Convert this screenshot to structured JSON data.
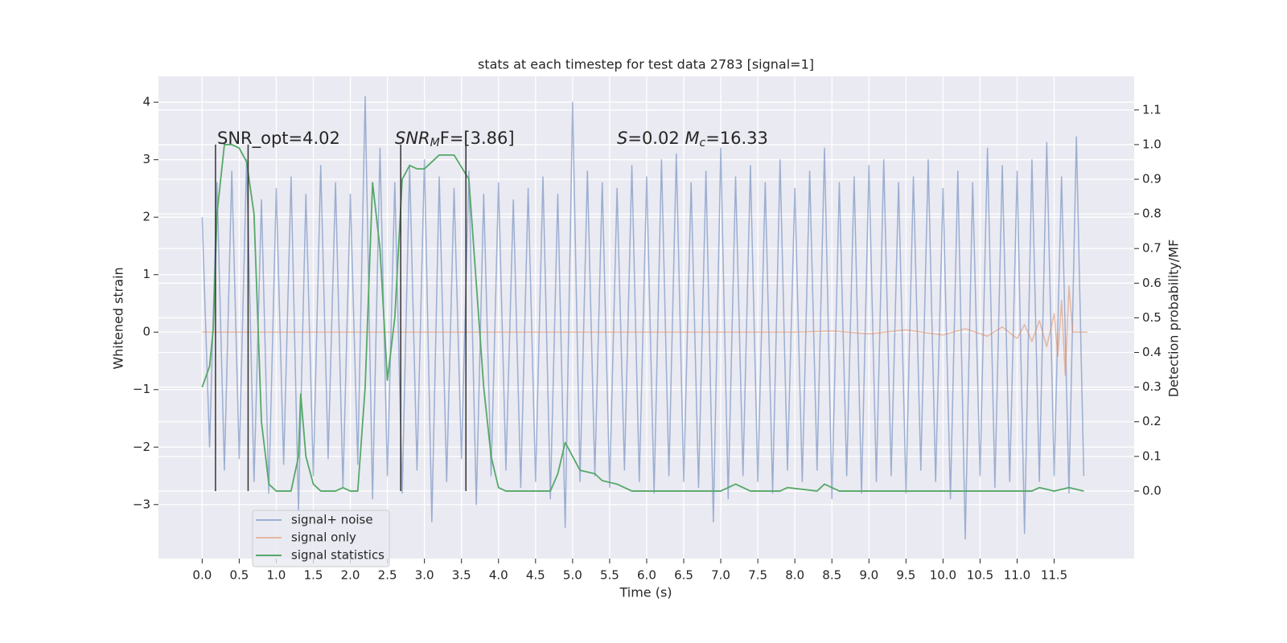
{
  "chart_data": {
    "type": "line",
    "title": "stats at each timestep for test data 2783 [signal=1]",
    "x_label": "Time (s)",
    "y_label": "Whitened strain",
    "y2_label": "Detection probability/MF",
    "xlim": [
      -0.59,
      12.58
    ],
    "ylim": [
      -3.94,
      4.45
    ],
    "y2lim": [
      -0.195,
      1.197
    ],
    "grid": true,
    "background": "#eaeaf2",
    "legend": "lower left",
    "xticks": [
      {
        "value": 0,
        "label": "0.0"
      },
      0.5,
      {
        "value": 1,
        "label": "1.0"
      },
      1.5,
      {
        "value": 2,
        "label": "2.0"
      },
      2.5,
      {
        "value": 3,
        "label": "3.0"
      },
      3.5,
      {
        "value": 4,
        "label": "4.0"
      },
      4.5,
      {
        "value": 5,
        "label": "5.0"
      },
      5.5,
      {
        "value": 6,
        "label": "6.0"
      },
      6.5,
      {
        "value": 7,
        "label": "7.0"
      },
      7.5,
      {
        "value": 8,
        "label": "8.0"
      },
      8.5,
      {
        "value": 9,
        "label": "9.0"
      },
      9.5,
      {
        "value": 10,
        "label": "10.0"
      },
      10.5,
      {
        "value": 11,
        "label": "11.0"
      },
      11.5
    ],
    "yticks": [
      {
        "value": -3,
        "label": "−3"
      },
      {
        "value": -2,
        "label": "−2"
      },
      {
        "value": -1,
        "label": "−1"
      },
      0,
      1,
      2,
      3,
      4
    ],
    "y2ticks": [
      {
        "value": 0,
        "label": "0.0"
      },
      0.1,
      0.2,
      0.3,
      0.4,
      0.5,
      0.6,
      0.7,
      0.8,
      0.9,
      {
        "value": 1,
        "label": "1.0"
      },
      1.1
    ],
    "series": [
      {
        "name": "signal+ noise",
        "color": "#4c72b0",
        "opacity": 0.5,
        "x": [
          0.0,
          0.1,
          0.2,
          0.3,
          0.4,
          0.5,
          0.6,
          0.7,
          0.8,
          0.9,
          1.0,
          1.1,
          1.2,
          1.3,
          1.4,
          1.5,
          1.6,
          1.7,
          1.8,
          1.9,
          2.0,
          2.1,
          2.2,
          2.3,
          2.4,
          2.5,
          2.6,
          2.7,
          2.8,
          2.9,
          3.0,
          3.1,
          3.2,
          3.3,
          3.4,
          3.5,
          3.6,
          3.7,
          3.8,
          3.9,
          4.0,
          4.1,
          4.2,
          4.3,
          4.4,
          4.5,
          4.6,
          4.7,
          4.8,
          4.9,
          5.0,
          5.1,
          5.2,
          5.3,
          5.4,
          5.5,
          5.6,
          5.7,
          5.8,
          5.9,
          6.0,
          6.1,
          6.2,
          6.3,
          6.4,
          6.5,
          6.6,
          6.7,
          6.8,
          6.9,
          7.0,
          7.1,
          7.2,
          7.3,
          7.4,
          7.5,
          7.6,
          7.7,
          7.8,
          7.9,
          8.0,
          8.1,
          8.2,
          8.3,
          8.4,
          8.5,
          8.6,
          8.7,
          8.8,
          8.9,
          9.0,
          9.1,
          9.2,
          9.3,
          9.4,
          9.5,
          9.6,
          9.7,
          9.8,
          9.9,
          10.0,
          10.1,
          10.2,
          10.3,
          10.4,
          10.5,
          10.6,
          10.7,
          10.8,
          10.9,
          11.0,
          11.1,
          11.2,
          11.3,
          11.4,
          11.5,
          11.6,
          11.7,
          11.8,
          11.9
        ],
        "values": [
          2.0,
          -2.0,
          2.6,
          -2.4,
          2.8,
          -2.2,
          3.0,
          -2.6,
          2.3,
          -2.8,
          2.5,
          -2.3,
          2.7,
          -3.1,
          2.4,
          -2.5,
          2.9,
          -2.2,
          2.6,
          -2.7,
          2.4,
          -2.3,
          4.1,
          -2.9,
          3.2,
          -2.5,
          2.6,
          -2.8,
          2.9,
          -2.4,
          3.0,
          -3.3,
          2.7,
          -2.6,
          2.5,
          -2.2,
          2.8,
          -3.0,
          2.4,
          -2.5,
          2.6,
          -2.4,
          2.3,
          -2.7,
          2.5,
          -2.6,
          2.7,
          -2.9,
          2.4,
          -3.4,
          4.0,
          -2.6,
          2.8,
          -2.5,
          2.6,
          -2.7,
          2.5,
          -2.4,
          2.9,
          -2.6,
          2.7,
          -2.8,
          3.0,
          -2.5,
          3.1,
          -2.6,
          2.6,
          -2.7,
          2.8,
          -3.3,
          3.2,
          -2.9,
          2.7,
          -2.5,
          2.9,
          -2.6,
          2.6,
          -2.8,
          3.0,
          -2.4,
          2.5,
          -2.6,
          2.8,
          -2.4,
          3.2,
          -2.9,
          2.6,
          -2.5,
          2.7,
          -2.8,
          2.9,
          -2.6,
          3.0,
          -2.5,
          2.6,
          -2.8,
          2.7,
          -2.4,
          3.0,
          -2.6,
          2.5,
          -2.9,
          2.8,
          -3.6,
          2.6,
          -2.5,
          3.2,
          -2.7,
          2.9,
          -2.6,
          2.8,
          -3.5,
          3.0,
          -2.6,
          3.3,
          -2.5,
          2.7,
          -2.8,
          3.4,
          -2.5
        ]
      },
      {
        "name": "signal only",
        "color": "#dd8452",
        "opacity": 0.5,
        "x": [
          0.0,
          8.0,
          8.5,
          9.0,
          9.5,
          10.0,
          10.3,
          10.6,
          10.8,
          11.0,
          11.1,
          11.2,
          11.3,
          11.4,
          11.5,
          11.55,
          11.6,
          11.65,
          11.7,
          11.75,
          11.95
        ],
        "values": [
          0,
          0,
          0.02,
          -0.03,
          0.04,
          -0.05,
          0.06,
          -0.07,
          0.09,
          -0.11,
          0.13,
          -0.16,
          0.2,
          -0.25,
          0.32,
          -0.42,
          0.55,
          -0.75,
          0.8,
          0,
          0
        ]
      },
      {
        "name": "signal statistics",
        "color": "#55a868",
        "opacity": 1,
        "axis": "y2",
        "x": [
          0.0,
          0.1,
          0.15,
          0.2,
          0.3,
          0.4,
          0.5,
          0.6,
          0.7,
          0.75,
          0.8,
          0.9,
          1.0,
          1.2,
          1.3,
          1.33,
          1.4,
          1.5,
          1.6,
          1.8,
          1.9,
          2.0,
          2.1,
          2.2,
          2.3,
          2.4,
          2.5,
          2.6,
          2.7,
          2.8,
          2.9,
          3.0,
          3.2,
          3.4,
          3.6,
          3.7,
          3.8,
          3.9,
          4.0,
          4.1,
          4.5,
          4.7,
          4.8,
          4.9,
          5.0,
          5.1,
          5.3,
          5.4,
          5.6,
          5.8,
          6.5,
          7.0,
          7.2,
          7.4,
          7.8,
          7.9,
          8.3,
          8.4,
          8.6,
          11.0,
          11.2,
          11.3,
          11.5,
          11.7,
          11.9
        ],
        "values": [
          0.3,
          0.36,
          0.47,
          0.8,
          1.0,
          1.0,
          0.99,
          0.95,
          0.8,
          0.5,
          0.2,
          0.02,
          0.0,
          0.0,
          0.1,
          0.28,
          0.1,
          0.02,
          0.0,
          0.0,
          0.01,
          0.0,
          0.0,
          0.3,
          0.89,
          0.7,
          0.32,
          0.5,
          0.9,
          0.94,
          0.93,
          0.93,
          0.97,
          0.97,
          0.9,
          0.6,
          0.3,
          0.1,
          0.01,
          0.0,
          0.0,
          0.0,
          0.05,
          0.14,
          0.1,
          0.06,
          0.05,
          0.03,
          0.02,
          0.0,
          0.0,
          0.0,
          0.02,
          0.0,
          0.0,
          0.01,
          0.0,
          0.02,
          0.0,
          0.0,
          0.0,
          0.01,
          0.0,
          0.01,
          0.0
        ]
      }
    ],
    "vlines": {
      "x": [
        0.18,
        0.62,
        2.68,
        3.56
      ],
      "ymin": 0,
      "ymax": 1,
      "axis": "y2",
      "color": "#333333"
    },
    "annotations": [
      {
        "parts": [
          {
            "text": "SNR_opt=4.02",
            "style": "normal"
          }
        ]
      },
      {
        "parts": [
          {
            "text": "SNR",
            "style": "italic"
          },
          {
            "text": "M",
            "style": "sub"
          },
          {
            "text": "F=[3.86]",
            "style": "italic-mix"
          }
        ]
      },
      {
        "parts": [
          {
            "text": "S",
            "style": "italic"
          },
          {
            "text": "=0.02   ",
            "style": "normal"
          },
          {
            "text": "M",
            "style": "italic"
          },
          {
            "text": "c",
            "style": "sub"
          },
          {
            "text": "=16.33",
            "style": "normal"
          }
        ]
      }
    ]
  }
}
